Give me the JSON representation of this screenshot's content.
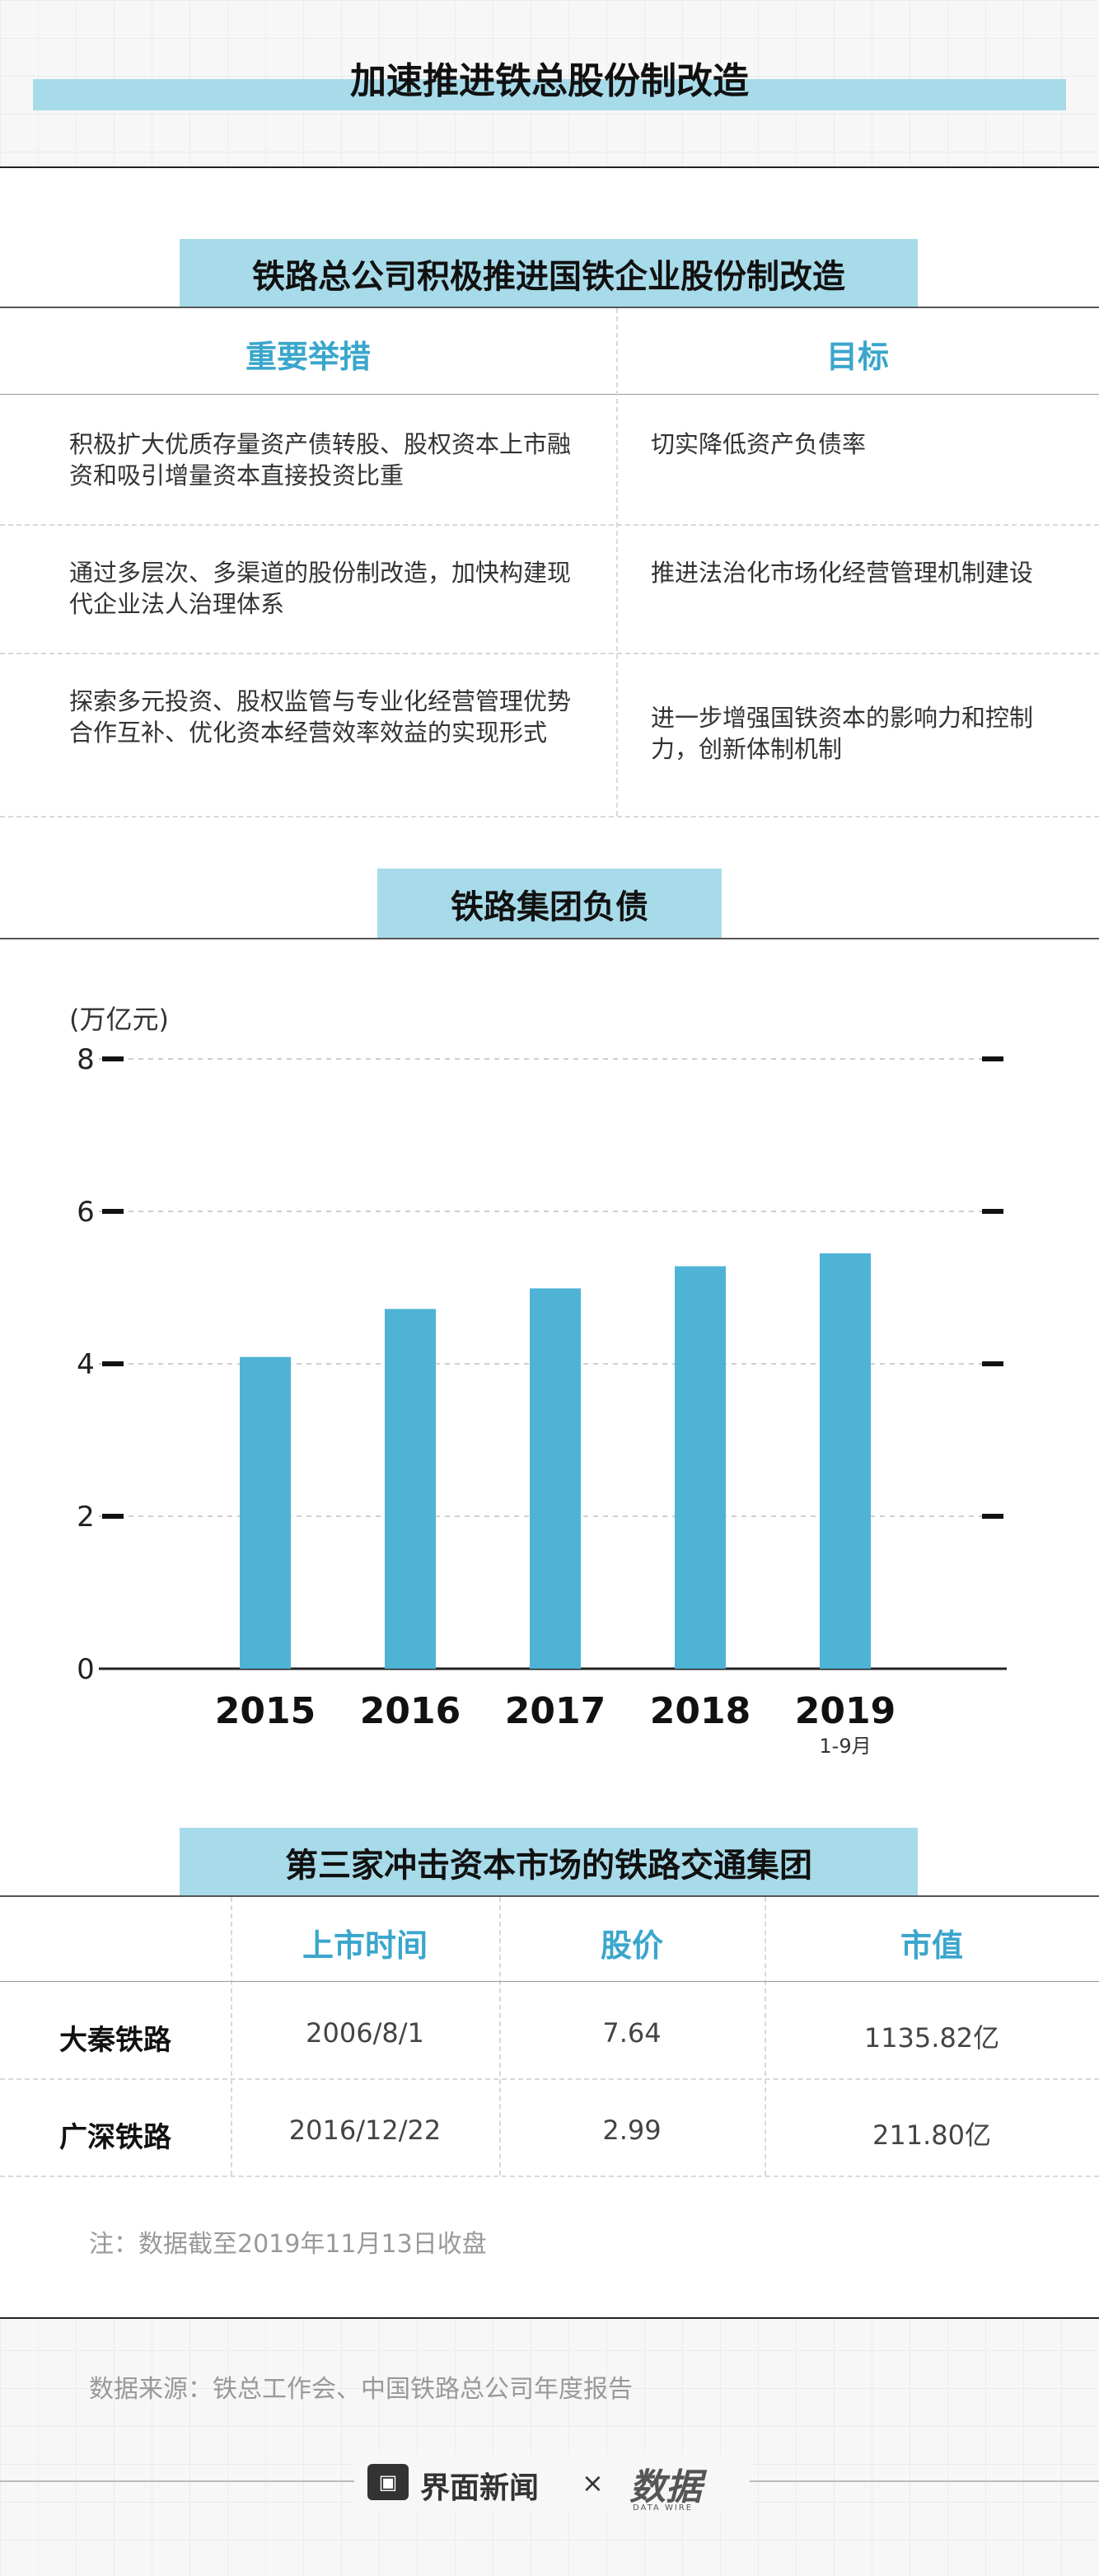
{
  "title": "加速推进铁总股份制改造",
  "section1": {
    "label": "铁路总公司积极推进国铁企业股份制改造",
    "headers": [
      "重要举措",
      "目标"
    ],
    "rows": [
      {
        "measure": "积极扩大优质存量资产债转股、股权资本上市融资和吸引增量资本直接投资比重",
        "goal": "切实降低资产负债率"
      },
      {
        "measure": "通过多层次、多渠道的股份制改造，加快构建现代企业法人治理体系",
        "goal": "推进法治化市场化经营管理机制建设"
      },
      {
        "measure": "探索多元投资、股权监管与专业化经营管理优势合作互补、优化资本经营效率效益的实现形式",
        "goal": "进一步增强国铁资本的影响力和控制力，创新体制机制"
      }
    ]
  },
  "section2": {
    "label": "铁路集团负债"
  },
  "chart_data": {
    "type": "bar",
    "title": "铁路集团负债",
    "ylabel": "(万亿元)",
    "categories": [
      "2015",
      "2016",
      "2017",
      "2018",
      "2019"
    ],
    "category_sublabels": [
      "",
      "",
      "",
      "",
      "1-9月"
    ],
    "values": [
      4.09,
      4.72,
      4.99,
      5.28,
      5.45
    ],
    "ylim": [
      0,
      8
    ],
    "yticks": [
      "0",
      "2",
      "4",
      "6",
      "8"
    ],
    "grid": true,
    "bar_color": "#4fb3d6"
  },
  "section3": {
    "label": "第三家冲击资本市场的铁路交通集团",
    "headers": [
      "",
      "上市时间",
      "股价",
      "市值"
    ],
    "rows": [
      [
        "大秦铁路",
        "2006/8/1",
        "7.64",
        "1135.82亿"
      ],
      [
        "广深铁路",
        "2016/12/22",
        "2.99",
        "211.80亿"
      ]
    ],
    "note": "注：数据截至2019年11月13日收盘"
  },
  "source": "数据来源：铁总工作会、中国铁路总公司年度报告",
  "footer": {
    "logo1": "界面新闻",
    "times": "×",
    "logo2": "数据",
    "logo2_sub": "DATA WIRE"
  }
}
